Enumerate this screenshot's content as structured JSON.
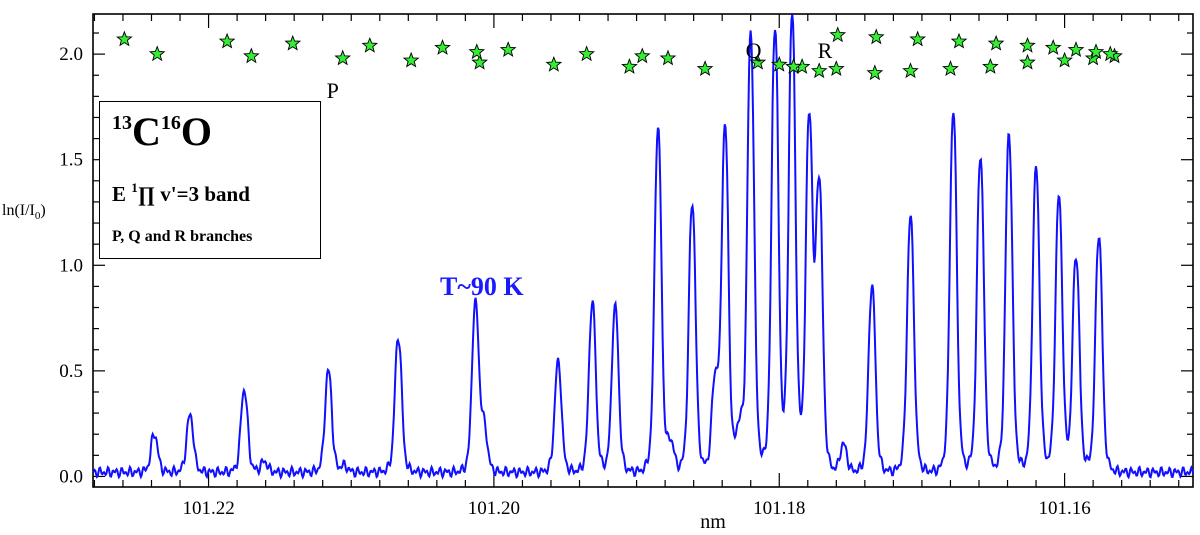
{
  "chart_data": {
    "type": "line",
    "xlabel": "nm",
    "ylabel": "ln(I/I",
    "ylabel_sub": "0",
    "ylabel_close": ")",
    "x_reversed": true,
    "xlim": [
      101.2281,
      101.151
    ],
    "ylim": [
      -0.05,
      2.19
    ],
    "x_ticks": [
      "101.22",
      "101.20",
      "101.18",
      "101.16"
    ],
    "x_tick_values": [
      101.22,
      101.2,
      101.18,
      101.16
    ],
    "y_ticks": [
      "0.0",
      "0.5",
      "1.0",
      "1.5",
      "2.0"
    ],
    "y_tick_values": [
      0.0,
      0.5,
      1.0,
      1.5,
      2.0
    ],
    "series": [
      {
        "color": "#1010ff",
        "baseline": 0.02,
        "peaks": [
          {
            "x": 101.2238,
            "y": 0.2
          },
          {
            "x": 101.2213,
            "y": 0.29
          },
          {
            "x": 101.2175,
            "y": 0.41
          },
          {
            "x": 101.2161,
            "y": 0.07
          },
          {
            "x": 101.2116,
            "y": 0.5
          },
          {
            "x": 101.2105,
            "y": 0.05
          },
          {
            "x": 101.2067,
            "y": 0.66
          },
          {
            "x": 101.2013,
            "y": 0.81
          },
          {
            "x": 101.2007,
            "y": 0.22
          },
          {
            "x": 101.1955,
            "y": 0.54
          },
          {
            "x": 101.1931,
            "y": 0.82
          },
          {
            "x": 101.1915,
            "y": 0.8
          },
          {
            "x": 101.1885,
            "y": 1.65
          },
          {
            "x": 101.1876,
            "y": 0.15
          },
          {
            "x": 101.1861,
            "y": 1.29
          },
          {
            "x": 101.1845,
            "y": 0.43
          },
          {
            "x": 101.1838,
            "y": 1.64
          },
          {
            "x": 101.1828,
            "y": 0.21
          },
          {
            "x": 101.182,
            "y": 2.09
          },
          {
            "x": 101.1803,
            "y": 2.12
          },
          {
            "x": 101.1791,
            "y": 2.17
          },
          {
            "x": 101.1779,
            "y": 1.66
          },
          {
            "x": 101.1772,
            "y": 1.36
          },
          {
            "x": 101.1755,
            "y": 0.15
          },
          {
            "x": 101.1735,
            "y": 0.9
          },
          {
            "x": 101.1708,
            "y": 1.23
          },
          {
            "x": 101.1678,
            "y": 1.73
          },
          {
            "x": 101.1659,
            "y": 1.52
          },
          {
            "x": 101.1639,
            "y": 1.62
          },
          {
            "x": 101.162,
            "y": 1.46
          },
          {
            "x": 101.1604,
            "y": 1.32
          },
          {
            "x": 101.1592,
            "y": 1.04
          },
          {
            "x": 101.1576,
            "y": 1.14
          }
        ]
      }
    ],
    "star_markers": [
      {
        "x": 101.2259,
        "y": 2.07
      },
      {
        "x": 101.2236,
        "y": 2.0
      },
      {
        "x": 101.2187,
        "y": 2.06
      },
      {
        "x": 101.217,
        "y": 1.99
      },
      {
        "x": 101.2141,
        "y": 2.05
      },
      {
        "x": 101.2106,
        "y": 1.98
      },
      {
        "x": 101.2087,
        "y": 2.04
      },
      {
        "x": 101.2058,
        "y": 1.97
      },
      {
        "x": 101.2036,
        "y": 2.03
      },
      {
        "x": 101.201,
        "y": 1.96
      },
      {
        "x": 101.199,
        "y": 2.02
      },
      {
        "x": 101.1958,
        "y": 1.95
      },
      {
        "x": 101.1935,
        "y": 2.0
      },
      {
        "x": 101.1905,
        "y": 1.94
      },
      {
        "x": 101.1878,
        "y": 1.98
      },
      {
        "x": 101.1852,
        "y": 1.93
      },
      {
        "x": 101.1815,
        "y": 1.96
      },
      {
        "x": 101.1784,
        "y": 1.94
      },
      {
        "x": 101.176,
        "y": 1.93
      },
      {
        "x": 101.1733,
        "y": 1.91
      },
      {
        "x": 101.1708,
        "y": 1.92
      },
      {
        "x": 101.168,
        "y": 1.93
      },
      {
        "x": 101.1652,
        "y": 1.94
      },
      {
        "x": 101.1626,
        "y": 1.96
      },
      {
        "x": 101.16,
        "y": 1.97
      },
      {
        "x": 101.158,
        "y": 1.98
      },
      {
        "x": 101.1565,
        "y": 1.99
      },
      {
        "x": 101.2012,
        "y": 2.01
      },
      {
        "x": 101.1896,
        "y": 1.99
      },
      {
        "x": 101.18,
        "y": 1.95
      },
      {
        "x": 101.179,
        "y": 1.94
      },
      {
        "x": 101.1772,
        "y": 1.92
      },
      {
        "x": 101.1759,
        "y": 2.09
      },
      {
        "x": 101.1732,
        "y": 2.08
      },
      {
        "x": 101.1703,
        "y": 2.07
      },
      {
        "x": 101.1674,
        "y": 2.06
      },
      {
        "x": 101.1648,
        "y": 2.05
      },
      {
        "x": 101.1626,
        "y": 2.04
      },
      {
        "x": 101.1608,
        "y": 2.03
      },
      {
        "x": 101.1592,
        "y": 2.02
      },
      {
        "x": 101.1578,
        "y": 2.01
      },
      {
        "x": 101.1568,
        "y": 2.0
      }
    ],
    "star_color": "#33ee33",
    "annotations": [
      {
        "text": "P",
        "x": 101.2113,
        "y": 1.83
      },
      {
        "text": "Q",
        "x": 101.1818,
        "y": 2.02
      },
      {
        "text": "R",
        "x": 101.1768,
        "y": 2.02
      }
    ]
  },
  "legend": {
    "mass13": "13",
    "elementC": "C",
    "mass16": "16",
    "elementO": "O",
    "state_prefix": "E ",
    "state_sup": "1",
    "state_suffix": "∏ v'=3 band",
    "branches": "P, Q and R branches"
  },
  "temperature_label": "T~90 K"
}
